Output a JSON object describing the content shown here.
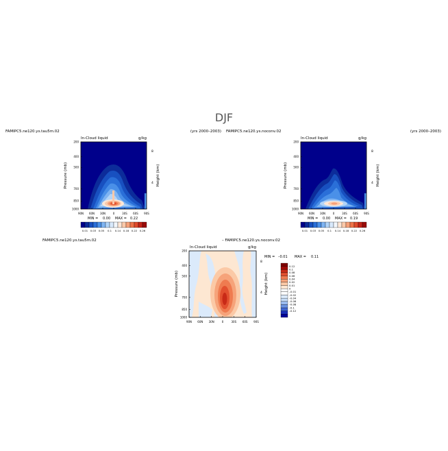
{
  "figure": {
    "title": "DJF"
  },
  "colors": {
    "cloud_scale": [
      "#00008b",
      "#0c2c9a",
      "#1850c0",
      "#2a6fd8",
      "#4a90e8",
      "#7fb4f2",
      "#b2d4f8",
      "#d8e9fc",
      "#f2f6fb",
      "#fde7d7",
      "#fbc9aa",
      "#f6a078",
      "#ee7348",
      "#e04a2c",
      "#c42418",
      "#9a0c0a"
    ],
    "diff_scale": [
      "#02009a",
      "#1a2fb8",
      "#3f66d2",
      "#6b93e3",
      "#9bbcef",
      "#c6dcf8",
      "#dbeafb",
      "#ffffff",
      "#ffffff",
      "#fde7d2",
      "#fbc9a6",
      "#f6a37a",
      "#ef7b50",
      "#e2502f",
      "#c92a17",
      "#a00b08",
      "#7e0000"
    ]
  },
  "chart_data": [
    {
      "type": "heatmap",
      "case": "FAMIPC5.ne120.ys.tau5m.02",
      "years": "(yrs 2000–2003)",
      "title": "In-Cloud liquid",
      "units": "g/kg",
      "ylabel": "Pressure (mb)",
      "ylabel_right": "Height (km)",
      "xticks": [
        "90N",
        "60N",
        "30N",
        "0",
        "30S",
        "60S",
        "90S"
      ],
      "yticks": [
        "200",
        "400",
        "500",
        "700",
        "850",
        "1000"
      ],
      "yticks_right": [
        "8",
        "4"
      ],
      "stats": {
        "min_label": "MIN =",
        "min": "0.00",
        "max_label": "MAX =",
        "max": "0.22"
      },
      "colorbar_ticks": [
        "0.01",
        "0.03",
        "0.05",
        "0.1",
        "0.14",
        "0.18",
        "0.22",
        "0.26"
      ],
      "peak": {
        "lat": -3,
        "p": 860,
        "value": 0.22
      }
    },
    {
      "type": "heatmap",
      "case": "FAMIPC5.ne120.ys.noconv.02",
      "years": "(yrs 2000–2003)",
      "title": "In-Cloud liquid",
      "units": "g/kg",
      "ylabel": "Pressure (mb)",
      "ylabel_right": "Height (km)",
      "xticks": [
        "90N",
        "60N",
        "30N",
        "0",
        "30S",
        "60S",
        "90S"
      ],
      "yticks": [
        "200",
        "400",
        "500",
        "700",
        "850",
        "1000"
      ],
      "yticks_right": [
        "8",
        "4"
      ],
      "stats": {
        "min_label": "MIN =",
        "min": "0.00",
        "max_label": "MAX =",
        "max": "0.19"
      },
      "colorbar_ticks": [
        "0.01",
        "0.03",
        "0.05",
        "0.1",
        "0.14",
        "0.18",
        "0.22",
        "0.26"
      ],
      "peak": {
        "lat": 0,
        "p": 870,
        "value": 0.19
      }
    },
    {
      "type": "heatmap",
      "case": "FAMIPC5.ne120.ys.tau5m.02",
      "case_b": "– FAMIPC5.ne120.ys.noconv.02",
      "title": "In-Cloud liquid",
      "units": "g/kg",
      "ylabel": "Pressure (mb)",
      "ylabel_right": "Height (km)",
      "xticks": [
        "90N",
        "60N",
        "30N",
        "0",
        "30S",
        "60S",
        "90S"
      ],
      "yticks": [
        "200",
        "400",
        "500",
        "700",
        "850",
        "1000"
      ],
      "yticks_right": [
        "8",
        "4"
      ],
      "stats": {
        "min_label": "MIN =",
        "min": "–0.01",
        "max_label": "MAX =",
        "max": "0.11"
      },
      "colorbar_ticks": [
        "0.12",
        "0.1",
        "0.08",
        "0.06",
        "0.04",
        "0.02",
        "0.01",
        "0",
        "–0.01",
        "–0.02",
        "–0.04",
        "–0.06",
        "–0.08",
        "–0.1",
        "–0.12"
      ],
      "peak": {
        "lat": 0,
        "p": 740,
        "value": 0.11
      }
    }
  ]
}
